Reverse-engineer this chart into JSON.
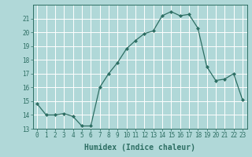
{
  "x": [
    0,
    1,
    2,
    3,
    4,
    5,
    6,
    7,
    8,
    9,
    10,
    11,
    12,
    13,
    14,
    15,
    16,
    17,
    18,
    19,
    20,
    21,
    22,
    23
  ],
  "y": [
    14.8,
    14.0,
    14.0,
    14.1,
    13.9,
    13.2,
    13.2,
    16.0,
    17.0,
    17.8,
    18.8,
    19.4,
    19.9,
    20.1,
    21.2,
    21.5,
    21.2,
    21.3,
    20.3,
    17.5,
    16.5,
    16.6,
    17.0,
    15.1
  ],
  "xlabel": "Humidex (Indice chaleur)",
  "ylim": [
    13,
    22
  ],
  "xlim": [
    -0.5,
    23.5
  ],
  "yticks": [
    13,
    14,
    15,
    16,
    17,
    18,
    19,
    20,
    21
  ],
  "xticks": [
    0,
    1,
    2,
    3,
    4,
    5,
    6,
    7,
    8,
    9,
    10,
    11,
    12,
    13,
    14,
    15,
    16,
    17,
    18,
    19,
    20,
    21,
    22,
    23
  ],
  "line_color": "#2d6e63",
  "marker": "D",
  "marker_size": 2.0,
  "bg_color": "#b0d8d8",
  "grid_color": "#ffffff",
  "grid_minor_color": "#d0e8e8",
  "label_color": "#2d6e63",
  "tick_fontsize": 5.5,
  "xlabel_fontsize": 7.0
}
